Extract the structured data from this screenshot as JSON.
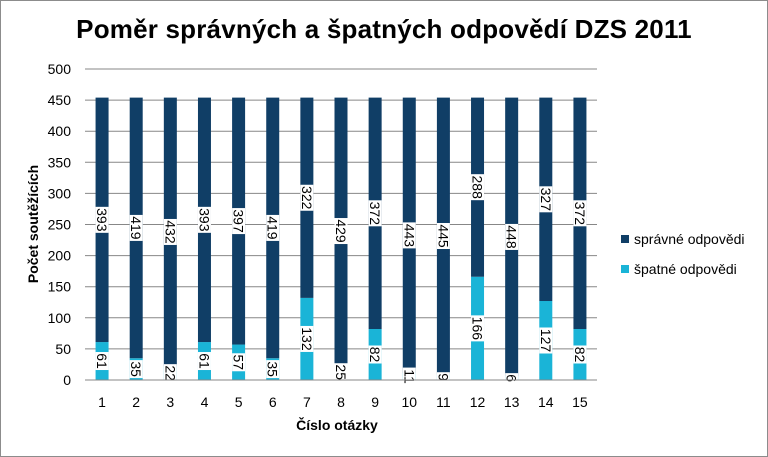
{
  "chart_data": {
    "type": "bar",
    "stacked": true,
    "title": "Poměr správných a špatných odpovědí DZS 2011",
    "xlabel": "Číslo otázky",
    "ylabel": "Počet soutěžících",
    "ylim": [
      0,
      500
    ],
    "yticks": [
      0,
      50,
      100,
      150,
      200,
      250,
      300,
      350,
      400,
      450,
      500
    ],
    "grid": true,
    "legend_position": "right",
    "categories": [
      "1",
      "2",
      "3",
      "4",
      "5",
      "6",
      "7",
      "8",
      "9",
      "10",
      "11",
      "12",
      "13",
      "14",
      "15"
    ],
    "series": [
      {
        "name": "špatné odpovědi",
        "color": "#1ab4d7",
        "values": [
          61,
          35,
          22,
          61,
          57,
          35,
          132,
          25,
          82,
          11,
          9,
          166,
          6,
          127,
          82
        ]
      },
      {
        "name": "správné odpovědi",
        "color": "#103e66",
        "values": [
          393,
          419,
          432,
          393,
          397,
          419,
          322,
          429,
          372,
          443,
          445,
          288,
          448,
          327,
          372
        ]
      }
    ]
  }
}
